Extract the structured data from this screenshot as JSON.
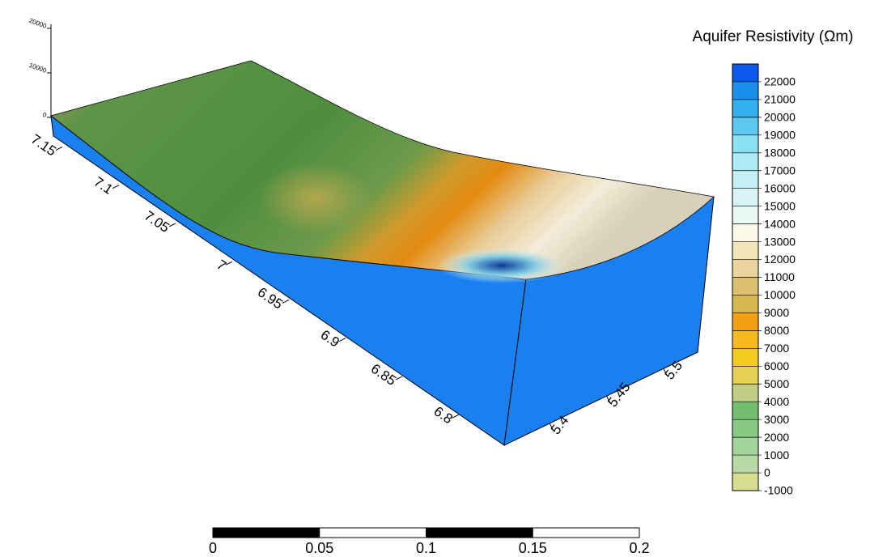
{
  "chart_data": {
    "type": "surface3d",
    "colorbar": {
      "title": "Aquifer Resistivity (Ωm)",
      "clim": [
        -1000,
        23000
      ],
      "ticks": [
        -1000,
        0,
        1000,
        2000,
        3000,
        4000,
        5000,
        6000,
        7000,
        8000,
        9000,
        10000,
        11000,
        12000,
        13000,
        14000,
        15000,
        16000,
        17000,
        18000,
        19000,
        20000,
        21000,
        22000
      ],
      "colors": [
        "#d6dd8e",
        "#b8d9a6",
        "#a2d49c",
        "#88c986",
        "#74be72",
        "#c2cd86",
        "#e6d054",
        "#f2cb1e",
        "#f7b822",
        "#f3a012",
        "#d6b64e",
        "#dcc072",
        "#ebd39c",
        "#f4e4ba",
        "#fcf8e6",
        "#eaf8f4",
        "#d8f4f5",
        "#c6eff8",
        "#aeebf8",
        "#8ce0f4",
        "#5cc8f0",
        "#30b0ec",
        "#1c8eec",
        "#0c5aec"
      ]
    },
    "xlim": [
      7.16,
      6.76
    ],
    "xticks": [
      7.15,
      7.1,
      7.05,
      7,
      6.95,
      6.9,
      6.85,
      6.8
    ],
    "ylim": [
      5.36,
      5.53
    ],
    "yticks": [
      5.4,
      5.45,
      5.5
    ],
    "zlim": [
      0,
      20000
    ],
    "zticks": [
      0,
      10000,
      20000
    ],
    "scalebar": {
      "lim": [
        0,
        0.2
      ],
      "ticks": [
        0,
        0.05,
        0.1,
        0.15,
        0.2
      ]
    },
    "side_color": "#1a80f0"
  }
}
